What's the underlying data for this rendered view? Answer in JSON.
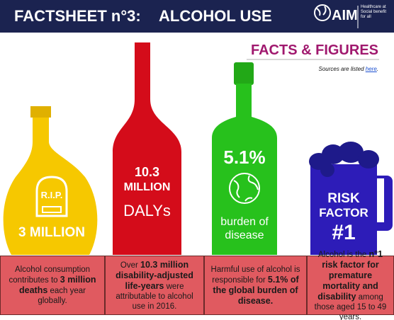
{
  "header": {
    "title": "FACTSHEET n°3:",
    "subtitle": "ALCOHOL USE",
    "logo": "AIM",
    "logo_tagline": "Healthcare at Social benefit for all"
  },
  "section": {
    "title": "FACTS & FIGURES",
    "sources_prefix": "Sources are listed ",
    "sources_link": "here",
    "sources_suffix": "."
  },
  "items": [
    {
      "figure": [
        "R.I.P.",
        "3 MILLION"
      ],
      "caption": [
        {
          "text": "Alcohol consumption contributes to "
        },
        {
          "text": "3 million deaths",
          "bold": true
        },
        {
          "text": " each year globally."
        }
      ]
    },
    {
      "figure": [
        "10.3",
        "MILLION",
        "DALYs"
      ],
      "caption": [
        {
          "text": "Over "
        },
        {
          "text": "10.3 million disability-adjusted life-years",
          "bold": true
        },
        {
          "text": " were attributable to alcohol use in 2016."
        }
      ]
    },
    {
      "figure": [
        "5.1%",
        "burden of",
        "disease"
      ],
      "caption": [
        {
          "text": "Harmful use of alcohol is responsible for "
        },
        {
          "text": "5.1% of the global burden of disease.",
          "bold": true
        }
      ]
    },
    {
      "figure": [
        "RISK",
        "FACTOR",
        "#1"
      ],
      "caption": [
        {
          "text": "Alcohol is the "
        },
        {
          "text": "n°1 risk factor for premature mortality and disability",
          "bold": true
        },
        {
          "text": " among those aged 15 to 49 years."
        }
      ]
    }
  ]
}
